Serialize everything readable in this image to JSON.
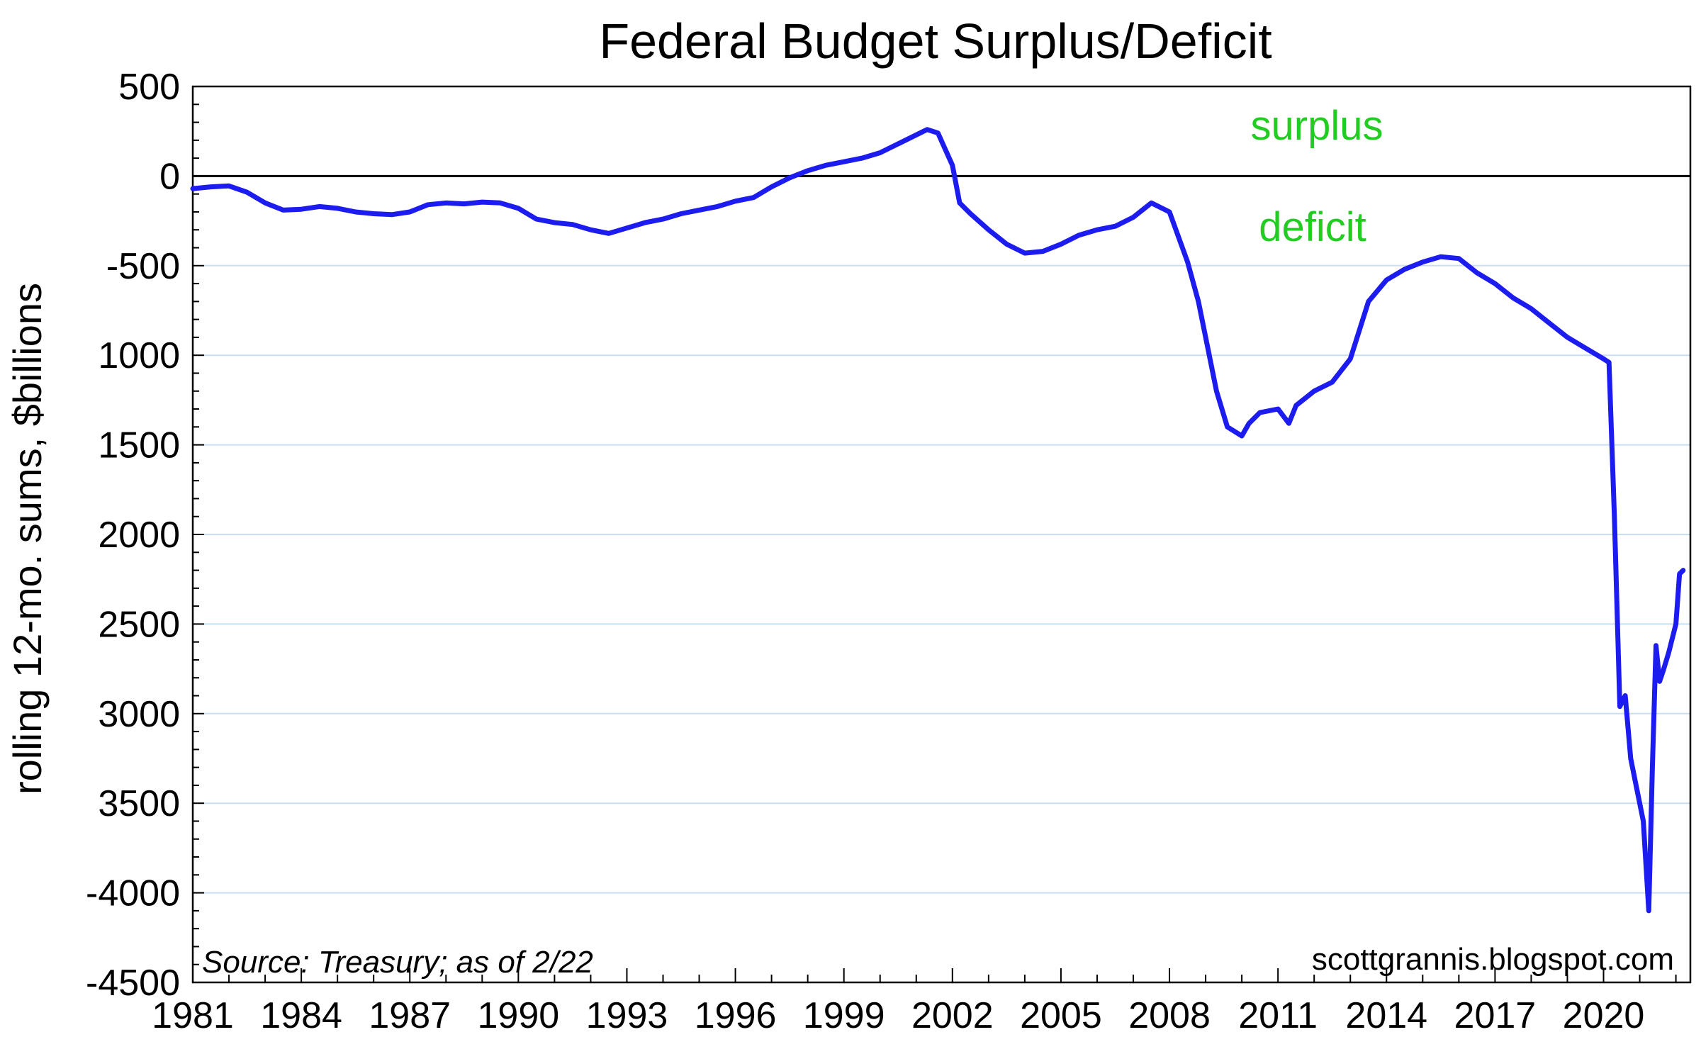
{
  "chart_data": {
    "type": "line",
    "title": "Federal Budget Surplus/Deficit",
    "ylabel": "rolling 12-mo. sums, $billions",
    "xlabel": "",
    "xlim": [
      1981,
      2022.4
    ],
    "ylim": [
      -4500,
      500
    ],
    "x_ticks": [
      1981,
      1984,
      1987,
      1990,
      1993,
      1996,
      1999,
      2002,
      2005,
      2008,
      2011,
      2014,
      2017,
      2020
    ],
    "x_tick_labels": [
      "1981",
      "1984",
      "1987",
      "1990",
      "1993",
      "1996",
      "1999",
      "2002",
      "2005",
      "2008",
      "2011",
      "2014",
      "2017",
      "2020"
    ],
    "y_ticks": [
      500,
      0,
      -500,
      -1000,
      -1500,
      -2000,
      -2500,
      -3000,
      -3500,
      -4000,
      -4500
    ],
    "y_tick_labels": [
      "500",
      "0",
      "-500",
      "1000",
      "1500",
      "2000",
      "2500",
      "3000",
      "3500",
      "-4000",
      "-4500"
    ],
    "grid": "horizontal",
    "zero_line": 0,
    "annotations": {
      "surplus": "surplus",
      "deficit": "deficit",
      "source": "Source: Treasury; as of 2/22",
      "credit": "scottgrannis.blogspot.com"
    },
    "colors": {
      "line": "#1c1cf0",
      "grid": "#c9def0",
      "annotation": "#22cc22",
      "zero_line": "#000000"
    },
    "series": [
      {
        "x": [
          1981.0,
          1981.5,
          1982.0,
          1982.5,
          1983.0,
          1983.5,
          1984.0,
          1984.5,
          1985.0,
          1985.5,
          1986.0,
          1986.5,
          1987.0,
          1987.5,
          1988.0,
          1988.5,
          1989.0,
          1989.5,
          1990.0,
          1990.5,
          1991.0,
          1991.5,
          1992.0,
          1992.5,
          1993.0,
          1993.5,
          1994.0,
          1994.5,
          1995.0,
          1995.5,
          1996.0,
          1996.5,
          1997.0,
          1997.5,
          1998.0,
          1998.5,
          1999.0,
          1999.5,
          2000.0,
          2000.5,
          2001.0,
          2001.3,
          2001.6,
          2002.0,
          2002.2,
          2002.5,
          2003.0,
          2003.5,
          2004.0,
          2004.5,
          2005.0,
          2005.5,
          2006.0,
          2006.5,
          2007.0,
          2007.5,
          2008.0,
          2008.5,
          2008.8,
          2009.0,
          2009.3,
          2009.6,
          2010.0,
          2010.2,
          2010.5,
          2011.0,
          2011.3,
          2011.5,
          2012.0,
          2012.5,
          2013.0,
          2013.5,
          2014.0,
          2014.5,
          2015.0,
          2015.5,
          2016.0,
          2016.5,
          2017.0,
          2017.5,
          2018.0,
          2018.5,
          2019.0,
          2019.5,
          2020.0,
          2020.15,
          2020.3,
          2020.45,
          2020.6,
          2020.75,
          2020.9,
          2021.1,
          2021.25,
          2021.35,
          2021.45,
          2021.55,
          2021.65,
          2021.8,
          2022.0,
          2022.1,
          2022.2
        ],
        "y": [
          -70,
          -60,
          -55,
          -90,
          -150,
          -190,
          -185,
          -170,
          -180,
          -200,
          -210,
          -215,
          -200,
          -160,
          -150,
          -155,
          -145,
          -150,
          -180,
          -240,
          -260,
          -270,
          -300,
          -320,
          -290,
          -260,
          -240,
          -210,
          -190,
          -170,
          -140,
          -120,
          -60,
          -10,
          30,
          60,
          80,
          100,
          130,
          180,
          230,
          260,
          240,
          60,
          -150,
          -210,
          -300,
          -380,
          -430,
          -420,
          -380,
          -330,
          -300,
          -280,
          -230,
          -150,
          -200,
          -480,
          -700,
          -900,
          -1200,
          -1400,
          -1450,
          -1380,
          -1320,
          -1300,
          -1380,
          -1280,
          -1200,
          -1150,
          -1020,
          -700,
          -580,
          -520,
          -480,
          -450,
          -460,
          -540,
          -600,
          -680,
          -740,
          -820,
          -900,
          -960,
          -1020,
          -1040,
          -1900,
          -2960,
          -2900,
          -3250,
          -3400,
          -3600,
          -4100,
          -3300,
          -2620,
          -2820,
          -2760,
          -2660,
          -2500,
          -2220,
          -2200
        ]
      }
    ]
  }
}
